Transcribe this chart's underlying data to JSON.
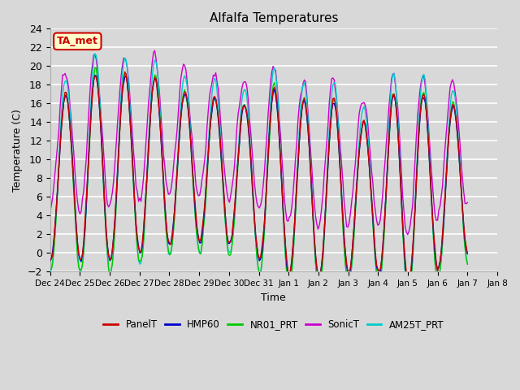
{
  "title": "Alfalfa Temperatures",
  "xlabel": "Time",
  "ylabel": "Temperature (C)",
  "ylim": [
    -2,
    24
  ],
  "yticks": [
    -2,
    0,
    2,
    4,
    6,
    8,
    10,
    12,
    14,
    16,
    18,
    20,
    22,
    24
  ],
  "xtick_labels": [
    "Dec 24",
    "Dec 25",
    "Dec 26",
    "Dec 27",
    "Dec 28",
    "Dec 29",
    "Dec 30",
    "Dec 31",
    "Jan 1",
    "Jan 2",
    "Jan 3",
    "Jan 4",
    "Jan 5",
    "Jan 6",
    "Jan 7",
    "Jan 8"
  ],
  "annotation_text": "TA_met",
  "annotation_bg": "#ffffcc",
  "annotation_border": "#cc0000",
  "annotation_text_color": "#cc0000",
  "series_colors": {
    "PanelT": "#cc0000",
    "HMP60": "#0000cc",
    "NR01_PRT": "#00cc00",
    "SonicT": "#cc00cc",
    "AM25T_PRT": "#00cccc"
  },
  "bg_color": "#d8d8d8",
  "plot_bg_color": "#d8d8d8",
  "grid_color": "#ffffff",
  "linewidth": 1.0,
  "num_points": 336
}
